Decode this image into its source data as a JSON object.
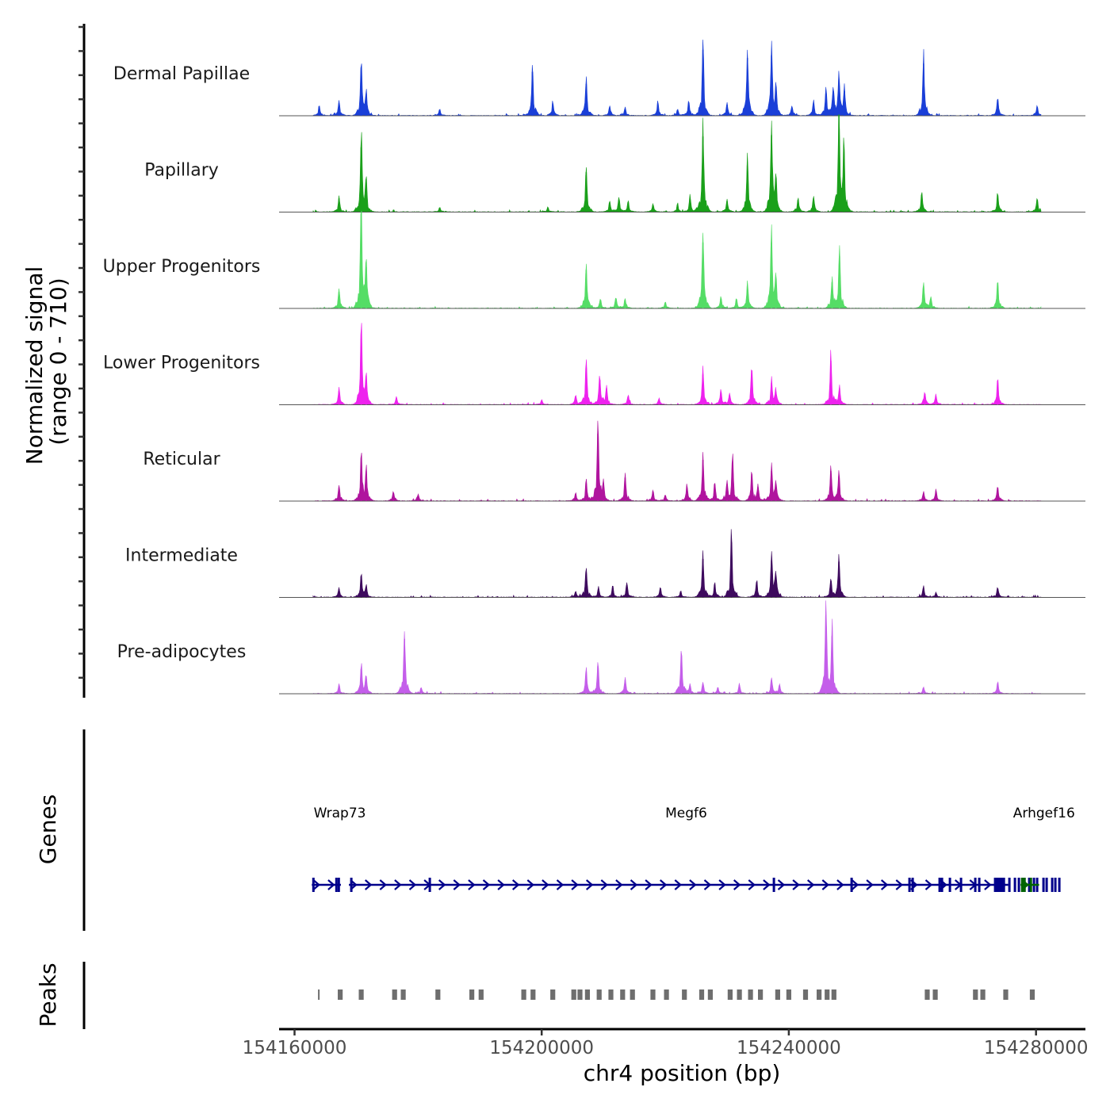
{
  "chart_data": {
    "type": "area",
    "title": "",
    "xlabel": "chr4 position (bp)",
    "xlim": [
      154157500,
      154288000
    ],
    "xticks": [
      154160000,
      154200000,
      154240000,
      154280000
    ],
    "xtick_labels": [
      "154160000",
      "154200000",
      "154240000",
      "154280000"
    ],
    "coverage": {
      "ylabel_line1": "Normalized signal",
      "ylabel_line2": "(range 0 - 710)",
      "ylim": [
        0,
        710
      ],
      "tracks": [
        {
          "name": "Dermal Papillae",
          "color": "#1a3fd8",
          "peaks": [
            [
              154164000,
              60
            ],
            [
              154167200,
              90
            ],
            [
              154170800,
              330
            ],
            [
              154171600,
              140
            ],
            [
              154183500,
              40
            ],
            [
              154198500,
              320
            ],
            [
              154201800,
              80
            ],
            [
              154207200,
              230
            ],
            [
              154211000,
              60
            ],
            [
              154213500,
              50
            ],
            [
              154218800,
              90
            ],
            [
              154222000,
              40
            ],
            [
              154223800,
              90
            ],
            [
              154226100,
              480
            ],
            [
              154230000,
              80
            ],
            [
              154233300,
              420
            ],
            [
              154237200,
              440
            ],
            [
              154237900,
              180
            ],
            [
              154240500,
              60
            ],
            [
              154244000,
              90
            ],
            [
              154246000,
              160
            ],
            [
              154247200,
              180
            ],
            [
              154248100,
              240
            ],
            [
              154249000,
              180
            ],
            [
              154261800,
              380
            ],
            [
              154273800,
              110
            ],
            [
              154280200,
              60
            ]
          ]
        },
        {
          "name": "Papillary",
          "color": "#1aa01a",
          "peaks": [
            [
              154167200,
              100
            ],
            [
              154170800,
              470
            ],
            [
              154171600,
              180
            ],
            [
              154183500,
              30
            ],
            [
              154201000,
              30
            ],
            [
              154207200,
              290
            ],
            [
              154211000,
              70
            ],
            [
              154212500,
              90
            ],
            [
              154214000,
              70
            ],
            [
              154218000,
              50
            ],
            [
              154222000,
              40
            ],
            [
              154224000,
              100
            ],
            [
              154226100,
              550
            ],
            [
              154230000,
              80
            ],
            [
              154233300,
              340
            ],
            [
              154237200,
              560
            ],
            [
              154237900,
              220
            ],
            [
              154241500,
              90
            ],
            [
              154244000,
              100
            ],
            [
              154248100,
              710
            ],
            [
              154248900,
              440
            ],
            [
              154261500,
              120
            ],
            [
              154273800,
              120
            ],
            [
              154280200,
              90
            ]
          ]
        },
        {
          "name": "Upper Progenitors",
          "color": "#55dd66",
          "peaks": [
            [
              154167200,
              120
            ],
            [
              154170800,
              700
            ],
            [
              154171600,
              300
            ],
            [
              154207200,
              280
            ],
            [
              154209500,
              60
            ],
            [
              154212000,
              70
            ],
            [
              154213500,
              60
            ],
            [
              154220000,
              40
            ],
            [
              154226100,
              480
            ],
            [
              154229000,
              70
            ],
            [
              154231500,
              60
            ],
            [
              154233300,
              160
            ],
            [
              154237200,
              480
            ],
            [
              154237900,
              200
            ],
            [
              154247000,
              190
            ],
            [
              154248200,
              380
            ],
            [
              154261800,
              160
            ],
            [
              154263000,
              70
            ],
            [
              154273800,
              170
            ]
          ]
        },
        {
          "name": "Lower Progenitors",
          "color": "#ee22ee",
          "peaks": [
            [
              154167200,
              100
            ],
            [
              154170800,
              480
            ],
            [
              154171600,
              180
            ],
            [
              154176500,
              50
            ],
            [
              154200000,
              30
            ],
            [
              154205500,
              60
            ],
            [
              154207200,
              270
            ],
            [
              154209400,
              180
            ],
            [
              154210500,
              120
            ],
            [
              154214000,
              60
            ],
            [
              154219000,
              40
            ],
            [
              154226100,
              220
            ],
            [
              154229000,
              90
            ],
            [
              154230400,
              70
            ],
            [
              154234000,
              250
            ],
            [
              154237200,
              160
            ],
            [
              154237900,
              90
            ],
            [
              154246800,
              320
            ],
            [
              154248200,
              120
            ],
            [
              154262000,
              80
            ],
            [
              154263800,
              60
            ],
            [
              154273800,
              160
            ]
          ]
        },
        {
          "name": "Reticular",
          "color": "#b0149e",
          "peaks": [
            [
              154167200,
              100
            ],
            [
              154170800,
              280
            ],
            [
              154171600,
              200
            ],
            [
              154176000,
              60
            ],
            [
              154180000,
              40
            ],
            [
              154205500,
              50
            ],
            [
              154207200,
              130
            ],
            [
              154209100,
              490
            ],
            [
              154210000,
              120
            ],
            [
              154213500,
              170
            ],
            [
              154218000,
              70
            ],
            [
              154220000,
              40
            ],
            [
              154223500,
              100
            ],
            [
              154226100,
              300
            ],
            [
              154228000,
              120
            ],
            [
              154230000,
              120
            ],
            [
              154230900,
              270
            ],
            [
              154234000,
              180
            ],
            [
              154235000,
              100
            ],
            [
              154237200,
              220
            ],
            [
              154237900,
              120
            ],
            [
              154246800,
              220
            ],
            [
              154248100,
              180
            ],
            [
              154261800,
              60
            ],
            [
              154263800,
              70
            ],
            [
              154273800,
              90
            ]
          ]
        },
        {
          "name": "Intermediate",
          "color": "#3e0a5e",
          "peaks": [
            [
              154167200,
              60
            ],
            [
              154170800,
              150
            ],
            [
              154171600,
              70
            ],
            [
              154205500,
              40
            ],
            [
              154207200,
              180
            ],
            [
              154209200,
              60
            ],
            [
              154211500,
              70
            ],
            [
              154213800,
              90
            ],
            [
              154219200,
              60
            ],
            [
              154222500,
              40
            ],
            [
              154226100,
              280
            ],
            [
              154228000,
              90
            ],
            [
              154230700,
              400
            ],
            [
              154234800,
              110
            ],
            [
              154237200,
              270
            ],
            [
              154237900,
              150
            ],
            [
              154246800,
              120
            ],
            [
              154248100,
              260
            ],
            [
              154261800,
              70
            ],
            [
              154263800,
              30
            ],
            [
              154273800,
              60
            ]
          ]
        },
        {
          "name": "Pre-adipocytes",
          "color": "#c45eea",
          "peaks": [
            [
              154167200,
              60
            ],
            [
              154170800,
              180
            ],
            [
              154171600,
              110
            ],
            [
              154177800,
              400
            ],
            [
              154180500,
              40
            ],
            [
              154207200,
              160
            ],
            [
              154209100,
              200
            ],
            [
              154213500,
              100
            ],
            [
              154222600,
              280
            ],
            [
              154224000,
              60
            ],
            [
              154226100,
              70
            ],
            [
              154228500,
              40
            ],
            [
              154232000,
              60
            ],
            [
              154237200,
              100
            ],
            [
              154238500,
              60
            ],
            [
              154246000,
              570
            ],
            [
              154247000,
              420
            ],
            [
              154261800,
              40
            ],
            [
              154273800,
              70
            ]
          ]
        }
      ]
    },
    "genes": {
      "ylabel": "Genes",
      "items": [
        {
          "name": "Wrap73",
          "start": 154162800,
          "end": 154167500,
          "color": "#00008b",
          "label_pos": 154163100
        },
        {
          "name": "Megf6",
          "start": 154168800,
          "end": 154275500,
          "color": "#00008b",
          "label_pos": 154220000
        },
        {
          "name": "Arhgef16",
          "start": 154277500,
          "end": 154280500,
          "color": "#006400",
          "label_pos": 154276300
        }
      ]
    },
    "peaks": {
      "ylabel": "Peaks",
      "color": "#6e6e6e",
      "regions": [
        [
          154163800,
          154164000
        ],
        [
          154167000,
          154167800
        ],
        [
          154170400,
          154171200
        ],
        [
          154175800,
          154176600
        ],
        [
          154177200,
          154178000
        ],
        [
          154182800,
          154183600
        ],
        [
          154188300,
          154189100
        ],
        [
          154189800,
          154190600
        ],
        [
          154196700,
          154197500
        ],
        [
          154198200,
          154199000
        ],
        [
          154201400,
          154202200
        ],
        [
          154204800,
          154205600
        ],
        [
          154205800,
          154206600
        ],
        [
          154207000,
          154207800
        ],
        [
          154208900,
          154209700
        ],
        [
          154210800,
          154211600
        ],
        [
          154212700,
          154213500
        ],
        [
          154214300,
          154215100
        ],
        [
          154217600,
          154218400
        ],
        [
          154219800,
          154220600
        ],
        [
          154222700,
          154223500
        ],
        [
          154225500,
          154226300
        ],
        [
          154226900,
          154227700
        ],
        [
          154230100,
          154230900
        ],
        [
          154231600,
          154232400
        ],
        [
          154233400,
          154234200
        ],
        [
          154235000,
          154235800
        ],
        [
          154237800,
          154238600
        ],
        [
          154239600,
          154240400
        ],
        [
          154242300,
          154243100
        ],
        [
          154244500,
          154245300
        ],
        [
          154245800,
          154246600
        ],
        [
          154246900,
          154247700
        ],
        [
          154262000,
          154262800
        ],
        [
          154263300,
          154264100
        ],
        [
          154269800,
          154270600
        ],
        [
          154271000,
          154271800
        ],
        [
          154274700,
          154275500
        ],
        [
          154279000,
          154279800
        ]
      ]
    }
  }
}
